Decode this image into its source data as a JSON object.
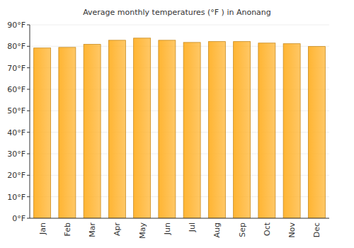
{
  "chart_data": {
    "type": "bar",
    "title": "Average monthly temperatures (°F ) in Anonang",
    "categories": [
      "Jan",
      "Feb",
      "Mar",
      "Apr",
      "May",
      "Jun",
      "Jul",
      "Aug",
      "Sep",
      "Oct",
      "Nov",
      "Dec"
    ],
    "values": [
      79.2,
      79.5,
      80.9,
      82.8,
      83.8,
      82.8,
      81.8,
      82.2,
      82.2,
      81.5,
      81.2,
      79.9
    ],
    "color": "#ffb533",
    "ylim": [
      0,
      90
    ],
    "yticks": [
      {
        "value": 0,
        "label": "0°F"
      },
      {
        "value": 10,
        "label": "10°F"
      },
      {
        "value": 20,
        "label": "20°F"
      },
      {
        "value": 30,
        "label": "30°F"
      },
      {
        "value": 40,
        "label": "40°F"
      },
      {
        "value": 50,
        "label": "50°F"
      },
      {
        "value": 60,
        "label": "60°F"
      },
      {
        "value": 70,
        "label": "70°F"
      },
      {
        "value": 80,
        "label": "80°F"
      },
      {
        "value": 90,
        "label": "90°F"
      }
    ],
    "grid": true
  }
}
